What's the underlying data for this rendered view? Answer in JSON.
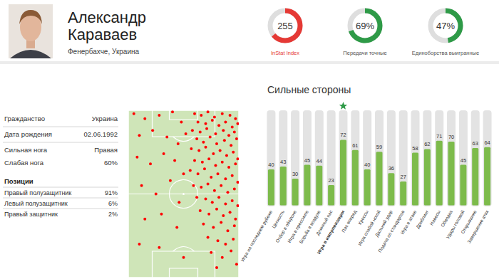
{
  "header": {
    "name_lines": [
      "Александр",
      "Караваев"
    ],
    "subtitle": "Фенербахче, Украина"
  },
  "gauges": [
    {
      "label": "InStat Index",
      "value": 255,
      "value_label": "255",
      "range": [
        0,
        400
      ],
      "color": "#e53935"
    },
    {
      "label": "Передачи точные",
      "value": 69,
      "value_label": "69%",
      "range": [
        0,
        100
      ],
      "color": "#2e9a47"
    },
    {
      "label": "Единоборства выигранные",
      "value": 47,
      "value_label": "47%",
      "range": [
        0,
        100
      ],
      "color": "#2e9a47"
    }
  ],
  "info": {
    "rows": [
      [
        "Гражданство",
        "Украина"
      ],
      [
        "Дата рождения",
        "02.06.1992"
      ],
      [
        "Сильная нога",
        "Правая"
      ],
      [
        "Слабая нога",
        "60%"
      ]
    ],
    "positions_title": "Позиции",
    "positions": [
      [
        "Правый полузащитник",
        "91%"
      ],
      [
        "Левый полузащитник",
        "6%"
      ],
      [
        "Правый защитник",
        "2%"
      ]
    ]
  },
  "chart_data": [
    {
      "type": "bar",
      "title": "Сильные стороны",
      "categories": [
        "Игра на последнем рубеже",
        "Цепкость",
        "Отбор в обороне",
        "Игра в прессинге",
        "Борьба в воздухе",
        "Длинный пас",
        "Игра в импровизации",
        "Пас вперед",
        "Кроссы",
        "Игра слабой ногой",
        "Дальний удар",
        "Подача со стандартов",
        "Игра в атаке",
        "Дриблинг",
        "Навесы",
        "Обводка",
        "Удары головой",
        "Открывание",
        "Завершение атак"
      ],
      "values": [
        40,
        43,
        30,
        45,
        44,
        23,
        72,
        61,
        40,
        59,
        36,
        27,
        58,
        62,
        71,
        70,
        45,
        63,
        64
      ],
      "color": "#7dbb4b",
      "ylim": [
        0,
        100
      ],
      "data_labels": true,
      "tick_labels": "x"
    },
    {
      "type": "scatter",
      "color": "#ff0000",
      "marker": "circle",
      "tick_labels": false,
      "xlim": [
        0,
        100
      ],
      "ylim": [
        0,
        100
      ],
      "x": [
        60,
        66,
        72,
        78,
        85,
        92,
        97,
        63,
        70,
        76,
        82,
        88,
        94,
        99,
        58,
        65,
        71,
        79,
        86,
        91,
        96,
        62,
        68,
        74,
        80,
        87,
        93,
        98,
        57,
        64,
        70,
        77,
        83,
        89,
        95,
        99,
        60,
        67,
        73,
        79,
        85,
        91,
        97,
        56,
        63,
        69,
        75,
        81,
        88,
        94,
        99,
        59,
        66,
        72,
        78,
        84,
        90,
        96,
        62,
        70,
        76,
        82,
        88,
        94,
        99,
        65,
        73,
        80,
        86,
        92,
        97,
        68,
        77,
        84,
        90,
        96,
        72,
        81,
        88,
        95,
        75,
        85,
        93,
        98,
        80,
        5,
        15,
        28,
        40,
        48,
        10,
        22,
        35,
        45,
        52,
        8,
        20,
        32,
        42,
        50,
        12,
        25,
        38,
        46,
        15,
        30,
        44,
        10,
        28,
        50
      ],
      "values": [
        98,
        97,
        99,
        96,
        98,
        97,
        95,
        93,
        92,
        94,
        91,
        93,
        90,
        92,
        88,
        87,
        89,
        86,
        88,
        85,
        87,
        83,
        81,
        84,
        80,
        82,
        79,
        83,
        77,
        76,
        78,
        74,
        76,
        73,
        75,
        71,
        70,
        69,
        71,
        67,
        69,
        66,
        68,
        64,
        62,
        65,
        60,
        62,
        59,
        61,
        57,
        55,
        54,
        56,
        52,
        55,
        51,
        53,
        48,
        47,
        45,
        48,
        44,
        46,
        43,
        40,
        38,
        41,
        37,
        39,
        35,
        32,
        30,
        33,
        28,
        31,
        24,
        22,
        20,
        23,
        15,
        12,
        16,
        8,
        6,
        98,
        95,
        97,
        99,
        93,
        85,
        88,
        84,
        80,
        86,
        72,
        68,
        74,
        70,
        62,
        55,
        50,
        58,
        45,
        35,
        38,
        30,
        20,
        18,
        12
      ]
    }
  ]
}
